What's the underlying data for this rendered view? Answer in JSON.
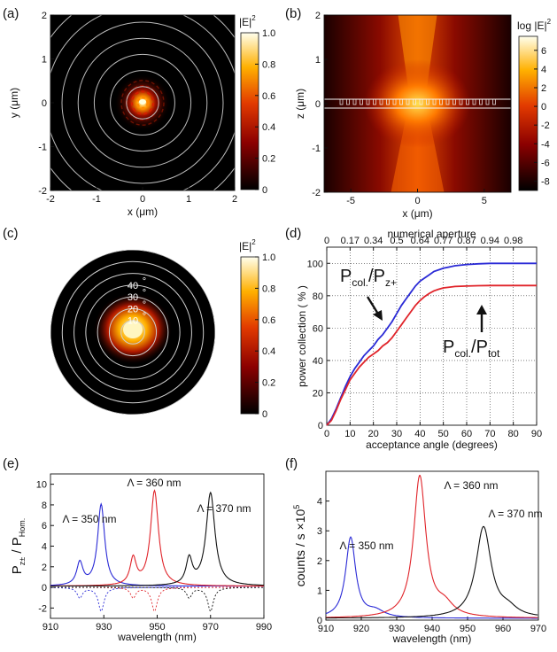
{
  "colors": {
    "blue": "#2a2ad6",
    "red": "#e0242a",
    "black": "#111111"
  },
  "chart_data": [
    {
      "panel": "(a)",
      "type": "heatmap",
      "xlabel": "x (μm)",
      "ylabel": "y (μm)",
      "xlim": [
        -2,
        2
      ],
      "ylim": [
        -2,
        2
      ],
      "xticks": [
        -2,
        -1,
        0,
        1,
        2
      ],
      "yticks": [
        -2,
        -1,
        0,
        1,
        2
      ],
      "colorbar": {
        "label": "|E|",
        "sup": "2",
        "ticks": [
          0,
          0.2,
          0.4,
          0.6,
          0.8,
          1.0
        ],
        "tick_labels": [
          "0",
          "0.2",
          "0.4",
          "0.6",
          "0.8",
          "1.0"
        ],
        "range": [
          0,
          1
        ]
      },
      "rings_um": [
        0.35,
        0.7,
        1.05,
        1.4,
        1.75,
        2.1,
        2.45
      ]
    },
    {
      "panel": "(b)",
      "type": "heatmap",
      "xlabel": "x (μm)",
      "ylabel": "z (μm)",
      "xlim": [
        -7,
        7
      ],
      "ylim": [
        -2,
        2
      ],
      "xticks": [
        -5,
        0,
        5
      ],
      "yticks": [
        -2,
        -1,
        0,
        1,
        2
      ],
      "colorbar": {
        "label": "log |E|",
        "sup": "2",
        "ticks": [
          -8,
          -6,
          -4,
          -2,
          0,
          2,
          4,
          6
        ],
        "range": [
          -9,
          7.5
        ]
      }
    },
    {
      "panel": "(c)",
      "type": "heatmap",
      "colorbar": {
        "label": "|E|",
        "sup": "2",
        "ticks": [
          0,
          0.2,
          0.4,
          0.6,
          0.8,
          1.0
        ],
        "tick_labels": [
          "0",
          "0.2",
          "0.4",
          "0.6",
          "0.8",
          "1.0"
        ],
        "range": [
          0,
          1
        ]
      },
      "angle_labels": [
        "10",
        "20",
        "30",
        "40"
      ],
      "degree_symbol": "°",
      "rings": 7
    },
    {
      "panel": "(d)",
      "type": "line",
      "xlabel": "acceptance angle (degrees)",
      "ylabel": "power collection ( % )",
      "top_axis_label": "numerical aperture",
      "xlim": [
        0,
        90
      ],
      "ylim": [
        0,
        110
      ],
      "xticks": [
        0,
        10,
        20,
        30,
        40,
        50,
        60,
        70,
        80,
        90
      ],
      "yticks": [
        0,
        20,
        40,
        60,
        80,
        100
      ],
      "top_ticks": {
        "angles": [
          0,
          10,
          20,
          30,
          40,
          50,
          60,
          70,
          80
        ],
        "labels": [
          "0",
          "0.17",
          "0.34",
          "0.5",
          "0.64",
          "0.77",
          "0.87",
          "0.94",
          "0.98"
        ]
      },
      "grid": true,
      "x": [
        0,
        2,
        4,
        6,
        8,
        10,
        12,
        14,
        16,
        18,
        20,
        22,
        24,
        26,
        28,
        30,
        32,
        34,
        36,
        38,
        40,
        42,
        44,
        46,
        48,
        50,
        55,
        60,
        65,
        70,
        75,
        80,
        85,
        90
      ],
      "series": [
        {
          "name": "blue",
          "color": "blue",
          "values": [
            0,
            4,
            10,
            17,
            24,
            30,
            35,
            39,
            43,
            46,
            49,
            53,
            56,
            60,
            64,
            69,
            74,
            78,
            82,
            86,
            89,
            91,
            93,
            95,
            96,
            97,
            98.5,
            99.3,
            99.7,
            100,
            100,
            100,
            100,
            100
          ]
        },
        {
          "name": "red",
          "color": "red",
          "values": [
            0,
            3,
            9,
            16,
            22,
            28,
            32,
            36,
            39,
            42,
            44,
            46,
            49,
            51,
            54,
            58,
            62,
            66,
            70,
            74,
            77,
            79.5,
            81.5,
            83,
            84,
            84.8,
            85.7,
            86,
            86.2,
            86.3,
            86.3,
            86.3,
            86.3,
            86.3
          ]
        }
      ],
      "annotations": [
        {
          "text": "P",
          "sub": "col.",
          "slash": "/P",
          "sub2": "z+"
        },
        {
          "text": "P",
          "sub": "col.",
          "slash": "/P",
          "sub2": "tot"
        }
      ]
    },
    {
      "panel": "(e)",
      "type": "line",
      "xlabel": "wavelength (nm)",
      "ylabel": "P",
      "ylabel_sub": "z±",
      "ylabel_tail": " / P",
      "ylabel_sub2": "Hom.",
      "xlim": [
        910,
        990
      ],
      "ylim": [
        -3,
        11
      ],
      "xticks": [
        910,
        930,
        950,
        970,
        990
      ],
      "yticks": [
        -2,
        0,
        2,
        4,
        6,
        8,
        10
      ],
      "peaks": [
        {
          "name": "Λ = 350 nm",
          "color": "blue",
          "center": 929,
          "height": 7.9,
          "width": 1.6
        },
        {
          "name": "Λ = 360 nm",
          "color": "red",
          "center": 949,
          "height": 9.2,
          "width": 1.8
        },
        {
          "name": "Λ = 370 nm",
          "color": "black",
          "center": 970,
          "height": 9.0,
          "width": 2.0
        }
      ],
      "labels": [
        "Λ = 350 nm",
        "Λ = 360 nm",
        "Λ = 370 nm"
      ]
    },
    {
      "panel": "(f)",
      "type": "line",
      "xlabel": "wavelength (nm)",
      "ylabel": "counts / s  ×10",
      "ylabel_sup": "5",
      "xlim": [
        910,
        970
      ],
      "ylim": [
        0,
        5
      ],
      "xticks": [
        910,
        920,
        930,
        940,
        950,
        960,
        970
      ],
      "yticks": [
        0,
        1,
        2,
        3,
        4
      ],
      "peaks": [
        {
          "name": "Λ = 350 nm",
          "color": "blue",
          "center": 917,
          "height": 2.7,
          "width": 1.7
        },
        {
          "name": "Λ = 360 nm",
          "color": "red",
          "center": 936.5,
          "height": 4.75,
          "width": 2.1
        },
        {
          "name": "Λ = 370 nm",
          "color": "black",
          "center": 954.5,
          "height": 3.05,
          "width": 2.6
        }
      ],
      "labels": [
        "Λ = 350 nm",
        "Λ = 360 nm",
        "Λ = 370 nm"
      ]
    }
  ]
}
